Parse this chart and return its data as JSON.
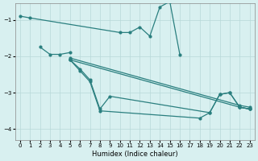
{
  "xlabel": "Humidex (Indice chaleur)",
  "bg_color": "#d8f0f0",
  "grid_color": "#b8d8d8",
  "line_color": "#2a7f7f",
  "ylim": [
    -4.3,
    -0.55
  ],
  "xlim": [
    -0.5,
    23.5
  ],
  "yticks": [
    -4,
    -3,
    -2,
    -1
  ],
  "xticks": [
    0,
    1,
    2,
    3,
    4,
    5,
    6,
    7,
    8,
    9,
    10,
    11,
    12,
    13,
    14,
    15,
    16,
    17,
    18,
    19,
    20,
    21,
    22,
    23
  ],
  "series": [
    {
      "x": [
        0,
        1,
        10,
        11,
        12,
        13,
        14,
        15,
        16
      ],
      "y": [
        -0.9,
        -0.95,
        -1.35,
        -1.35,
        -1.2,
        -1.45,
        -0.65,
        -0.5,
        -1.95
      ]
    },
    {
      "x": [
        2,
        3,
        4,
        5
      ],
      "y": [
        -1.75,
        -1.95,
        -1.95,
        -1.9
      ]
    },
    {
      "x": [
        5,
        22,
        23
      ],
      "y": [
        -2.05,
        -3.35,
        -3.4
      ]
    },
    {
      "x": [
        5,
        22,
        23
      ],
      "y": [
        -2.1,
        -3.4,
        -3.45
      ]
    },
    {
      "x": [
        5,
        6,
        7,
        8,
        9,
        19,
        20,
        21,
        22,
        23
      ],
      "y": [
        -2.1,
        -2.35,
        -2.65,
        -3.45,
        -3.1,
        -3.55,
        -3.05,
        -3.0,
        -3.4,
        -3.45
      ]
    },
    {
      "x": [
        5,
        6,
        7,
        8,
        18,
        19,
        20,
        21,
        22,
        23
      ],
      "y": [
        -2.1,
        -2.4,
        -2.7,
        -3.5,
        -3.7,
        -3.55,
        -3.05,
        -3.0,
        -3.4,
        -3.45
      ]
    }
  ]
}
